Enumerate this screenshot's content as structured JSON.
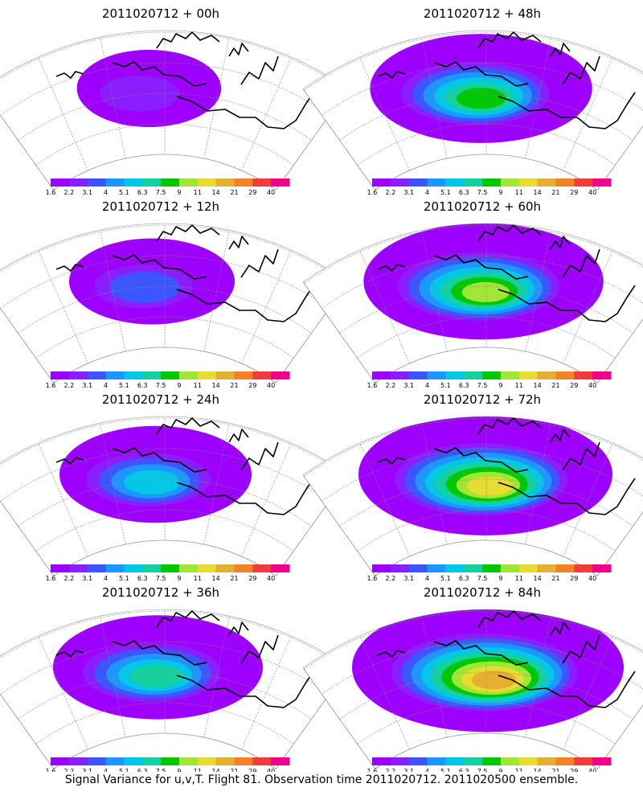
{
  "caption": "Signal Variance for u,v,T. Flight 81. Observation time 2011020712. 2011020500 ensemble.",
  "colorbar": {
    "labels": [
      "1.6",
      "2.2",
      "3.1",
      "4",
      "5.1",
      "6.3",
      "7.5",
      "9",
      "11",
      "14",
      "21",
      "29",
      "40"
    ],
    "colors": [
      "#9d00ff",
      "#8a1eff",
      "#3c55ff",
      "#1e96ff",
      "#00c8e6",
      "#14d2a0",
      "#00c800",
      "#a0e632",
      "#e6dc32",
      "#e6af2d",
      "#f08228",
      "#f03c3c",
      "#f0008c"
    ]
  },
  "background_color": "#9d00ff",
  "panels": [
    {
      "title": "2011020712 + 00h",
      "intensity": 0.18
    },
    {
      "title": "2011020712 + 48h",
      "intensity": 0.62
    },
    {
      "title": "2011020712 + 12h",
      "intensity": 0.3
    },
    {
      "title": "2011020712 + 60h",
      "intensity": 0.72
    },
    {
      "title": "2011020712 + 24h",
      "intensity": 0.45
    },
    {
      "title": "2011020712 + 72h",
      "intensity": 0.8
    },
    {
      "title": "2011020712 + 36h",
      "intensity": 0.55
    },
    {
      "title": "2011020712 + 84h",
      "intensity": 0.9
    }
  ]
}
